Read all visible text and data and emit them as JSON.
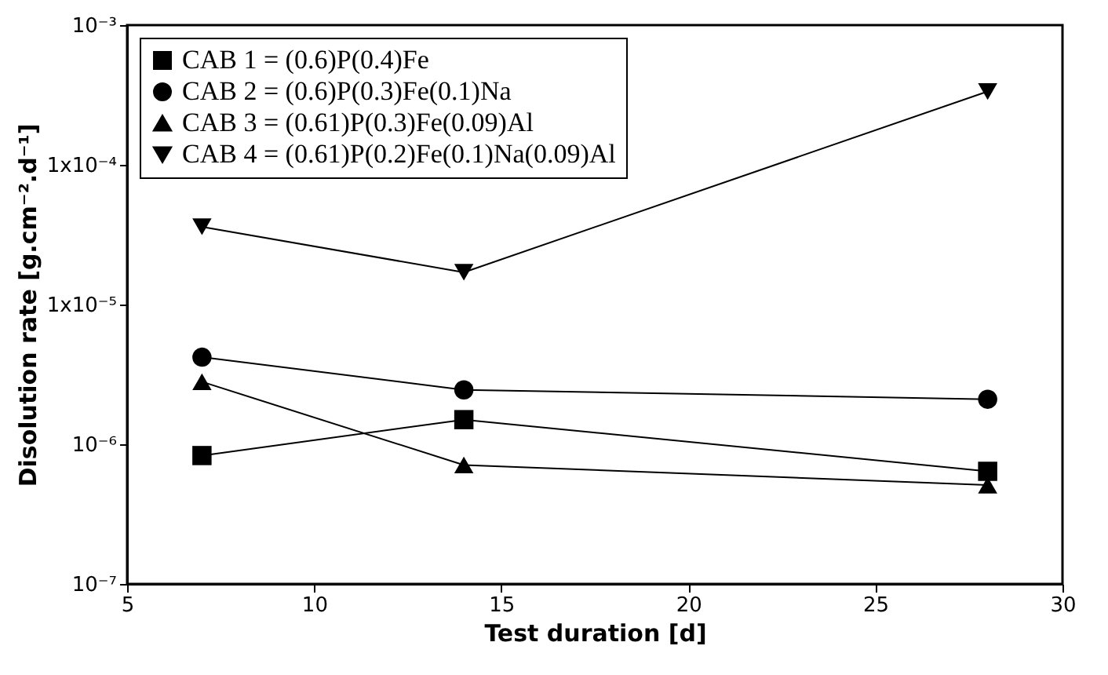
{
  "chart_data": {
    "type": "line",
    "xlabel": "Test duration [d]",
    "ylabel": "Disolution rate [g.cm⁻².d⁻¹]",
    "x": [
      7,
      14,
      28
    ],
    "series": [
      {
        "name": "CAB 1 = (0.6)P(0.4)Fe",
        "color": "#000000",
        "marker": "square",
        "values": [
          8.3e-07,
          1.5e-06,
          6.4e-07
        ]
      },
      {
        "name": "CAB 2 = (0.6)P(0.3)Fe(0.1)Na",
        "color": "#000000",
        "marker": "circle",
        "values": [
          4.2e-06,
          2.45e-06,
          2.1e-06
        ]
      },
      {
        "name": "CAB 3 = (0.61)P(0.3)Fe(0.09)Al",
        "color": "#000000",
        "marker": "triangle",
        "values": [
          2.8e-06,
          7.1e-07,
          5.1e-07
        ]
      },
      {
        "name": "CAB 4 = (0.61)P(0.2)Fe(0.1)Na(0.09)Al",
        "color": "#000000",
        "marker": "triangle-down",
        "values": [
          3.6e-05,
          1.7e-05,
          0.000335
        ]
      }
    ],
    "xlim": [
      5,
      30
    ],
    "xticks": [
      5,
      10,
      15,
      20,
      25,
      30
    ],
    "ylim": [
      1e-07,
      0.001
    ],
    "yticks": [
      {
        "value": 1e-07,
        "label": "10⁻⁷"
      },
      {
        "value": 1e-06,
        "label": "10⁻⁶"
      },
      {
        "value": 1e-05,
        "label": "1x10⁻⁵"
      },
      {
        "value": 0.0001,
        "label": "1x10⁻⁴"
      },
      {
        "value": 0.001,
        "label": "10⁻³"
      }
    ],
    "log": "y",
    "grid": false,
    "legend": "top left",
    "line_style": "solid"
  }
}
